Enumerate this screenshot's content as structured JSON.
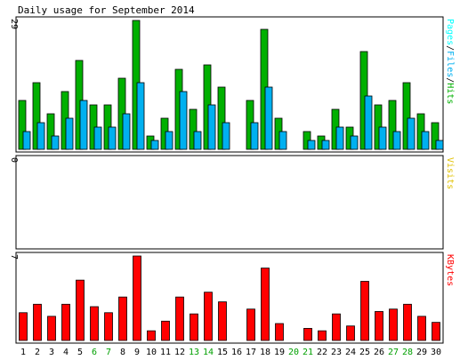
{
  "chart_data": {
    "type": "bar",
    "title": "Daily usage for September 2014",
    "categories": [
      "1",
      "2",
      "3",
      "4",
      "5",
      "6",
      "7",
      "8",
      "9",
      "10",
      "11",
      "12",
      "13",
      "14",
      "15",
      "16",
      "17",
      "18",
      "19",
      "20",
      "21",
      "22",
      "23",
      "24",
      "25",
      "26",
      "27",
      "28",
      "29",
      "30"
    ],
    "weekend_days": [
      "6",
      "7",
      "13",
      "14",
      "20",
      "21",
      "27",
      "28"
    ],
    "panels": [
      {
        "name": "hits-files-pages",
        "ylim": [
          0,
          29
        ],
        "ytick_label": "29",
        "side_label_parts": [
          "Pages",
          "/",
          "Files",
          "/",
          "Hits"
        ],
        "series": [
          {
            "name": "Hits",
            "color": "#00b000",
            "values": [
              11,
              15,
              8,
              13,
              20,
              10,
              10,
              16,
              29,
              3,
              7,
              18,
              9,
              19,
              14,
              0,
              11,
              27,
              7,
              0,
              4,
              3,
              9,
              5,
              22,
              10,
              11,
              15,
              8,
              6
            ]
          },
          {
            "name": "Files",
            "color": "#00b0f0",
            "values": [
              4,
              6,
              3,
              7,
              11,
              5,
              5,
              8,
              15,
              2,
              4,
              13,
              4,
              10,
              6,
              0,
              6,
              14,
              4,
              0,
              2,
              2,
              5,
              3,
              12,
              5,
              4,
              7,
              4,
              2
            ]
          },
          {
            "name": "Pages",
            "color": "#00ffff",
            "values": [
              0,
              0,
              0,
              0,
              0,
              0,
              0,
              0,
              0,
              0,
              0,
              0,
              0,
              0,
              0,
              0,
              0,
              0,
              0,
              0,
              0,
              0,
              0,
              0,
              0,
              0,
              0,
              0,
              0,
              0
            ]
          }
        ]
      },
      {
        "name": "visits",
        "ylim": [
          0,
          1
        ],
        "ytick_label": "0",
        "side_label_parts": [
          "Visits"
        ],
        "series": [
          {
            "name": "Visits",
            "color": "#e0c000",
            "values": [
              0,
              0,
              0,
              0,
              0,
              0,
              0,
              0,
              0,
              0,
              0,
              0,
              0,
              0,
              0,
              0,
              0,
              0,
              0,
              0,
              0,
              0,
              0,
              0,
              0,
              0,
              0,
              0,
              0,
              0
            ]
          }
        ]
      },
      {
        "name": "kbytes",
        "ylim": [
          0,
          7
        ],
        "ytick_label": "7",
        "side_label_parts": [
          "KBytes"
        ],
        "series": [
          {
            "name": "KBytes",
            "color": "#ff0000",
            "values": [
              2.3,
              3.0,
              2.0,
              3.0,
              5.0,
              2.8,
              2.3,
              3.6,
              7.0,
              0.8,
              1.6,
              3.6,
              2.2,
              4.0,
              3.2,
              0,
              2.6,
              6.0,
              1.4,
              0,
              1.0,
              0.8,
              2.2,
              1.2,
              4.9,
              2.4,
              2.6,
              3.0,
              2.0,
              1.5
            ]
          }
        ]
      }
    ],
    "colors": {
      "background": "#ffffff",
      "frame": "#000000",
      "weekday_label": "#000000",
      "weekend_label": "#00a000",
      "slash": "#000000"
    },
    "legend_placement": "right side, vertical",
    "grid": false
  }
}
